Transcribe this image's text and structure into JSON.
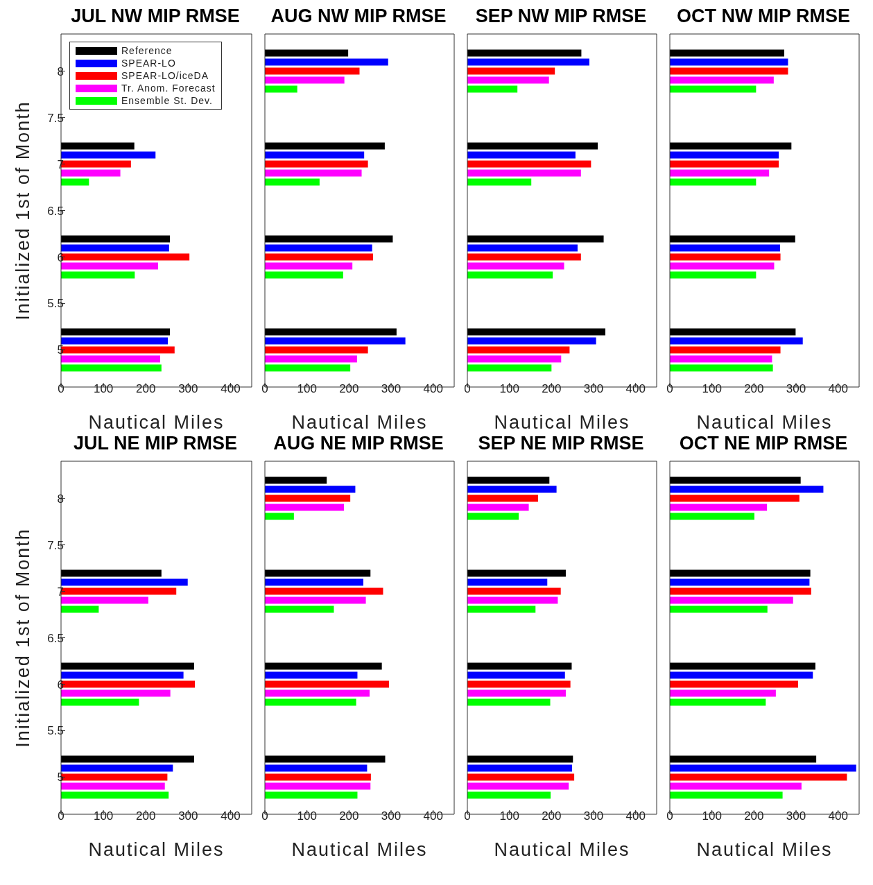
{
  "chart_data": [
    {
      "type": "bar",
      "orientation": "horizontal",
      "title": "JUL NW MIP RMSE",
      "xlabel": "Nautical Miles",
      "ylabel": "Initialized 1st of Month",
      "x": [
        5,
        6,
        7
      ],
      "xlim": [
        0,
        450
      ],
      "xticks": [
        0,
        100,
        200,
        300,
        400
      ],
      "ylim": [
        4.6,
        8.4
      ],
      "yticks": [
        5,
        5.5,
        6,
        6.5,
        7,
        7.5,
        8
      ],
      "legend": "top left",
      "series": [
        {
          "name": "Reference",
          "color": "#000000",
          "values": [
            257,
            257,
            173
          ]
        },
        {
          "name": "SPEAR-LO",
          "color": "#0000ff",
          "values": [
            252,
            255,
            223
          ]
        },
        {
          "name": "SPEAR-LO/iceDA",
          "color": "#ff0000",
          "values": [
            268,
            303,
            165
          ]
        },
        {
          "name": "Tr. Anom. Forecast",
          "color": "#ff00ff",
          "values": [
            234,
            229,
            140
          ]
        },
        {
          "name": "Ensemble St. Dev.",
          "color": "#00ff00",
          "values": [
            237,
            174,
            66
          ]
        }
      ]
    },
    {
      "type": "bar",
      "orientation": "horizontal",
      "title": "AUG NW MIP RMSE",
      "xlabel": "Nautical Miles",
      "x": [
        5,
        6,
        7,
        8
      ],
      "xlim": [
        0,
        450
      ],
      "xticks": [
        0,
        100,
        200,
        300,
        400
      ],
      "ylim": [
        4.6,
        8.4
      ],
      "yticks": [
        5,
        5.5,
        6,
        6.5,
        7,
        7.5,
        8
      ],
      "tick_labels": "x",
      "series": [
        {
          "color": "#000000",
          "values": [
            313,
            304,
            285,
            198
          ]
        },
        {
          "color": "#0000ff",
          "values": [
            334,
            255,
            236,
            293
          ]
        },
        {
          "color": "#ff0000",
          "values": [
            245,
            257,
            245,
            225
          ]
        },
        {
          "color": "#ff00ff",
          "values": [
            219,
            208,
            230,
            189
          ]
        },
        {
          "color": "#00ff00",
          "values": [
            203,
            186,
            130,
            77
          ]
        }
      ]
    },
    {
      "type": "bar",
      "orientation": "horizontal",
      "title": "SEP NW MIP RMSE",
      "xlabel": "Nautical Miles",
      "x": [
        5,
        6,
        7,
        8
      ],
      "xlim": [
        0,
        450
      ],
      "xticks": [
        0,
        100,
        200,
        300,
        400
      ],
      "ylim": [
        4.6,
        8.4
      ],
      "yticks": [
        5,
        5.5,
        6,
        6.5,
        7,
        7.5,
        8
      ],
      "tick_labels": "x",
      "series": [
        {
          "color": "#000000",
          "values": [
            328,
            324,
            310,
            271
          ]
        },
        {
          "color": "#0000ff",
          "values": [
            306,
            262,
            257,
            290
          ]
        },
        {
          "color": "#ff0000",
          "values": [
            243,
            270,
            294,
            208
          ]
        },
        {
          "color": "#ff00ff",
          "values": [
            223,
            230,
            270,
            194
          ]
        },
        {
          "color": "#00ff00",
          "values": [
            200,
            203,
            152,
            119
          ]
        }
      ]
    },
    {
      "type": "bar",
      "orientation": "horizontal",
      "title": "OCT NW MIP RMSE",
      "xlabel": "Nautical Miles",
      "x": [
        5,
        6,
        7,
        8
      ],
      "xlim": [
        0,
        450
      ],
      "xticks": [
        0,
        100,
        200,
        300,
        400
      ],
      "ylim": [
        4.6,
        8.4
      ],
      "yticks": [
        5,
        5.5,
        6,
        6.5,
        7,
        7.5,
        8
      ],
      "tick_labels": "x",
      "series": [
        {
          "color": "#000000",
          "values": [
            299,
            298,
            289,
            272
          ]
        },
        {
          "color": "#0000ff",
          "values": [
            316,
            262,
            259,
            281
          ]
        },
        {
          "color": "#ff0000",
          "values": [
            263,
            263,
            259,
            281
          ]
        },
        {
          "color": "#ff00ff",
          "values": [
            243,
            248,
            236,
            247
          ]
        },
        {
          "color": "#00ff00",
          "values": [
            245,
            205,
            205,
            205
          ]
        }
      ]
    },
    {
      "type": "bar",
      "orientation": "horizontal",
      "title": "JUL NE MIP RMSE",
      "xlabel": "Nautical Miles",
      "ylabel": "Initialized 1st of Month",
      "x": [
        5,
        6,
        7
      ],
      "xlim": [
        0,
        450
      ],
      "xticks": [
        0,
        100,
        200,
        300,
        400
      ],
      "ylim": [
        4.6,
        8.4
      ],
      "yticks": [
        5,
        5.5,
        6,
        6.5,
        7,
        7.5,
        8
      ],
      "series": [
        {
          "color": "#000000",
          "values": [
            314,
            314,
            237
          ]
        },
        {
          "color": "#0000ff",
          "values": [
            264,
            289,
            299
          ]
        },
        {
          "color": "#ff0000",
          "values": [
            251,
            316,
            272
          ]
        },
        {
          "color": "#ff00ff",
          "values": [
            245,
            258,
            206
          ]
        },
        {
          "color": "#00ff00",
          "values": [
            254,
            184,
            89
          ]
        }
      ]
    },
    {
      "type": "bar",
      "orientation": "horizontal",
      "title": "AUG NE MIP RMSE",
      "xlabel": "Nautical Miles",
      "x": [
        5,
        6,
        7,
        8
      ],
      "xlim": [
        0,
        450
      ],
      "xticks": [
        0,
        100,
        200,
        300,
        400
      ],
      "ylim": [
        4.6,
        8.4
      ],
      "yticks": [
        5,
        5.5,
        6,
        6.5,
        7,
        7.5,
        8
      ],
      "tick_labels": "x",
      "series": [
        {
          "color": "#000000",
          "values": [
            286,
            278,
            251,
            147
          ]
        },
        {
          "color": "#0000ff",
          "values": [
            243,
            220,
            234,
            215
          ]
        },
        {
          "color": "#ff0000",
          "values": [
            252,
            295,
            281,
            203
          ]
        },
        {
          "color": "#ff00ff",
          "values": [
            251,
            249,
            240,
            188
          ]
        },
        {
          "color": "#00ff00",
          "values": [
            220,
            217,
            164,
            69
          ]
        }
      ]
    },
    {
      "type": "bar",
      "orientation": "horizontal",
      "title": "SEP NE MIP RMSE",
      "xlabel": "Nautical Miles",
      "x": [
        5,
        6,
        7,
        8
      ],
      "xlim": [
        0,
        450
      ],
      "xticks": [
        0,
        100,
        200,
        300,
        400
      ],
      "ylim": [
        4.6,
        8.4
      ],
      "yticks": [
        5,
        5.5,
        6,
        6.5,
        7,
        7.5,
        8
      ],
      "tick_labels": "x",
      "series": [
        {
          "color": "#000000",
          "values": [
            251,
            248,
            234,
            195
          ]
        },
        {
          "color": "#0000ff",
          "values": [
            249,
            232,
            190,
            212
          ]
        },
        {
          "color": "#ff0000",
          "values": [
            254,
            245,
            222,
            168
          ]
        },
        {
          "color": "#ff00ff",
          "values": [
            241,
            234,
            215,
            146
          ]
        },
        {
          "color": "#00ff00",
          "values": [
            198,
            197,
            162,
            122
          ]
        }
      ]
    },
    {
      "type": "bar",
      "orientation": "horizontal",
      "title": "OCT NE MIP RMSE",
      "xlabel": "Nautical Miles",
      "x": [
        5,
        6,
        7,
        8
      ],
      "xlim": [
        0,
        450
      ],
      "xticks": [
        0,
        100,
        200,
        300,
        400
      ],
      "ylim": [
        4.6,
        8.4
      ],
      "yticks": [
        5,
        5.5,
        6,
        6.5,
        7,
        7.5,
        8
      ],
      "tick_labels": "x",
      "series": [
        {
          "color": "#000000",
          "values": [
            348,
            346,
            334,
            311
          ]
        },
        {
          "color": "#0000ff",
          "values": [
            443,
            340,
            332,
            365
          ]
        },
        {
          "color": "#ff0000",
          "values": [
            421,
            305,
            336,
            308
          ]
        },
        {
          "color": "#ff00ff",
          "values": [
            313,
            252,
            293,
            231
          ]
        },
        {
          "color": "#00ff00",
          "values": [
            268,
            228,
            232,
            201
          ]
        }
      ]
    }
  ]
}
